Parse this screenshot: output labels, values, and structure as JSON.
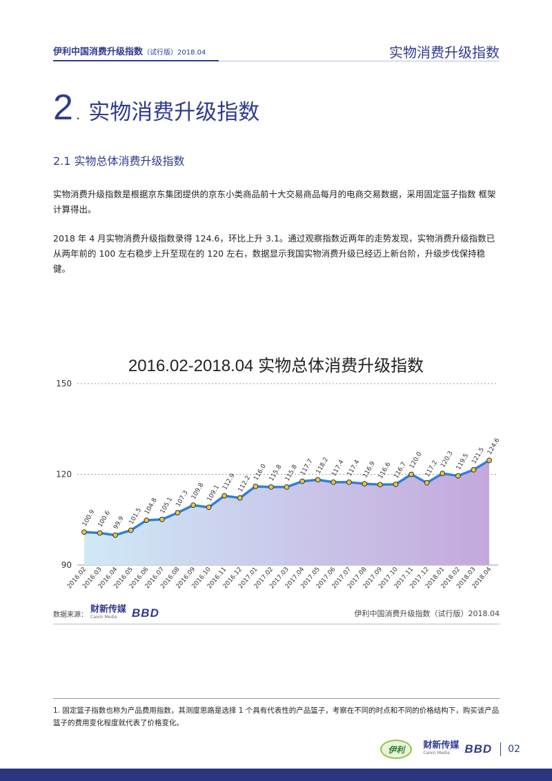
{
  "header": {
    "left_title": "伊利中国消费升级指数",
    "left_subtitle": "（试行版）2018.04",
    "right_title": "实物消费升级指数"
  },
  "section": {
    "number": "2",
    "dot": ".",
    "title": "实物消费升级指数",
    "subheading": "2.1  实物总体消费升级指数"
  },
  "paragraphs": [
    "实物消费升级指数是根据京东集团提供的京东小类商品前十大交易商品每月的电商交易数据，采用固定篮子指数 框架计算得出。",
    "2018 年 4 月实物消费升级指数录得 124.6，环比上升 3.1。通过观察指数近两年的走势发现，实物消费升级指数已从两年前的 100 左右稳步上升至现在的 120 左右，数据显示我国实物消费升级已经迈上新台阶，升级步伐保持稳健。"
  ],
  "chart_data": {
    "type": "area",
    "title": "2016.02-2018.04 实物总体消费升级指数",
    "categories": [
      "2016.02",
      "2016.03",
      "2016.04",
      "2016.05",
      "2016.06",
      "2016.07",
      "2016.08",
      "2016.09",
      "2016.10",
      "2016.11",
      "2016.12",
      "2017.01",
      "2017.02",
      "2017.03",
      "2017.04",
      "2017.05",
      "2017.06",
      "2017.07",
      "2017.08",
      "2017.09",
      "2017.10",
      "2017.11",
      "2017.12",
      "2018.01",
      "2018.02",
      "2018.03",
      "2018.04"
    ],
    "values": [
      100.9,
      100.6,
      99.9,
      101.5,
      104.8,
      105.1,
      107.3,
      109.8,
      109.1,
      112.9,
      112.2,
      116.0,
      115.8,
      115.8,
      117.7,
      118.2,
      117.4,
      117.4,
      116.9,
      116.6,
      116.7,
      120.0,
      117.2,
      120.3,
      119.5,
      121.5,
      124.6
    ],
    "ylim": [
      90,
      150
    ],
    "yticks": [
      90,
      120,
      150
    ],
    "grid": "dashed horizontal at 120 and 150",
    "colors": {
      "line": "#2f7fd6",
      "marker_fill": "#e6c64a",
      "area_left": "#cfe9f7",
      "area_right": "#c4a8dc"
    }
  },
  "chart_footer": {
    "source_label": "数据来源：",
    "logo_caixin": "财新传媒",
    "logo_caixin_sub": "Caixin Media",
    "logo_bbd": "BBD",
    "brand": "伊利中国消费升级指数（试行版）2018.04"
  },
  "footnote": "1. 固定篮子指数也称为产品费用指数，其测度思路是选择 1 个具有代表性的产品篮子，考察在不同的时点和不同的价格结构下，购买该产品篮子的费用变化程度就代表了价格变化。",
  "footer": {
    "logo_yili": "伊利",
    "logo_caixin": "财新传媒",
    "logo_caixin_sub": "Caixin Media",
    "logo_bbd": "BBD",
    "page_number": "02"
  }
}
